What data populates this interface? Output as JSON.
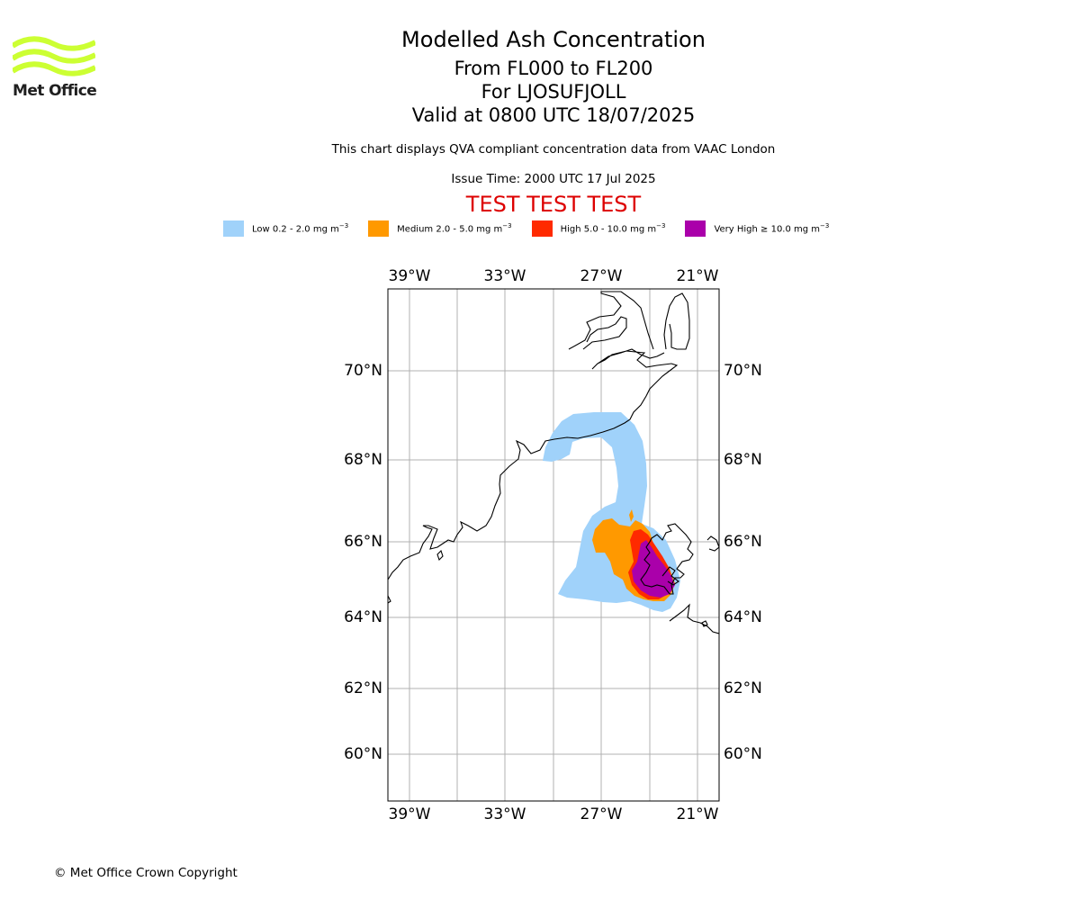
{
  "logo": {
    "text": "Met Office",
    "color": "#ccff33"
  },
  "title": {
    "main": "Modelled Ash Concentration",
    "flight_levels": "From FL000 to FL200",
    "volcano": "For LJOSUFJOLL",
    "valid": "Valid at 0800 UTC 18/07/2025"
  },
  "description": "This chart displays QVA compliant concentration data from VAAC London",
  "issue_time": "Issue Time: 2000 UTC 17 Jul 2025",
  "test_banner": "TEST TEST TEST",
  "legend": [
    {
      "label": "Low 0.2 - 2.0 mg m",
      "unit_sup": "−3",
      "color": "#a0d2fa"
    },
    {
      "label": "Medium 2.0 - 5.0 mg m",
      "unit_sup": "−3",
      "color": "#ff9900"
    },
    {
      "label": "High 5.0 - 10.0 mg m",
      "unit_sup": "−3",
      "color": "#ff2a00"
    },
    {
      "label": "Very High  ≥  10.0 mg m",
      "unit_sup": "−3",
      "color": "#aa00aa"
    }
  ],
  "map": {
    "lon_ticks": [
      "39°W",
      "33°W",
      "27°W",
      "21°W"
    ],
    "lat_ticks": [
      "70°N",
      "68°N",
      "66°N",
      "64°N",
      "62°N",
      "60°N"
    ],
    "lon_values": [
      -39,
      -33,
      -27,
      -21
    ],
    "lat_values": [
      70,
      68,
      66,
      64,
      62,
      60
    ]
  },
  "copyright": "© Met Office Crown Copyright"
}
